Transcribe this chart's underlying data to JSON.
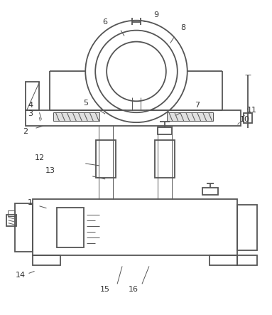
{
  "line_color": "#555555",
  "line_width": 1.3,
  "thin_line": 0.7,
  "bg_color": "#ffffff",
  "label_color": "#333333",
  "label_fontsize": 8.0,
  "fig_w": 3.83,
  "fig_h": 4.43
}
